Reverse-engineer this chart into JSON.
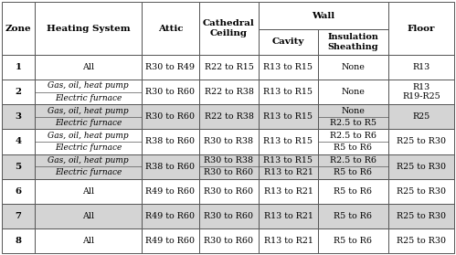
{
  "rows": [
    {
      "zone": "1",
      "heating": [
        "All"
      ],
      "attic": [
        "R30 to R49"
      ],
      "cathedral": [
        "R22 to R15"
      ],
      "cavity": [
        "R13 to R15"
      ],
      "sheathing": [
        "None"
      ],
      "floor": [
        "R13"
      ],
      "shaded": false,
      "sub": false
    },
    {
      "zone": "2",
      "heating": [
        "Gas, oil, heat pump",
        "Electric furnace"
      ],
      "attic": [
        "R30 to R60"
      ],
      "cathedral": [
        "R22 to R38"
      ],
      "cavity": [
        "R13 to R15"
      ],
      "sheathing": [
        "None"
      ],
      "floor": [
        "R13",
        "R19-R25"
      ],
      "shaded": false,
      "sub": true
    },
    {
      "zone": "3",
      "heating": [
        "Gas, oil, heat pump",
        "Electric furnace"
      ],
      "attic": [
        "R30 to R60"
      ],
      "cathedral": [
        "R22 to R38"
      ],
      "cavity": [
        "R13 to R15"
      ],
      "sheathing": [
        "None",
        "R2.5 to R5"
      ],
      "floor": [
        "R25"
      ],
      "shaded": true,
      "sub": true
    },
    {
      "zone": "4",
      "heating": [
        "Gas, oil, heat pump",
        "Electric furnace"
      ],
      "attic": [
        "R38 to R60"
      ],
      "cathedral": [
        "R30 to R38"
      ],
      "cavity": [
        "R13 to R15"
      ],
      "sheathing": [
        "R2.5 to R6",
        "R5 to R6"
      ],
      "floor": [
        "R25 to R30"
      ],
      "shaded": false,
      "sub": true
    },
    {
      "zone": "5",
      "heating": [
        "Gas, oil, heat pump",
        "Electric furnace"
      ],
      "attic": [
        "R38 to R60"
      ],
      "cathedral": [
        "R30 to R38",
        "R30 to R60"
      ],
      "cavity": [
        "R13 to R15",
        "R13 to R21"
      ],
      "sheathing": [
        "R2.5 to R6",
        "R5 to R6"
      ],
      "floor": [
        "R25 to R30"
      ],
      "shaded": true,
      "sub": true
    },
    {
      "zone": "6",
      "heating": [
        "All"
      ],
      "attic": [
        "R49 to R60"
      ],
      "cathedral": [
        "R30 to R60"
      ],
      "cavity": [
        "R13 to R21"
      ],
      "sheathing": [
        "R5 to R6"
      ],
      "floor": [
        "R25 to R30"
      ],
      "shaded": false,
      "sub": false
    },
    {
      "zone": "7",
      "heating": [
        "All"
      ],
      "attic": [
        "R49 to R60"
      ],
      "cathedral": [
        "R30 to R60"
      ],
      "cavity": [
        "R13 to R21"
      ],
      "sheathing": [
        "R5 to R6"
      ],
      "floor": [
        "R25 to R30"
      ],
      "shaded": true,
      "sub": false
    },
    {
      "zone": "8",
      "heating": [
        "All"
      ],
      "attic": [
        "R49 to R60"
      ],
      "cathedral": [
        "R30 to R60"
      ],
      "cavity": [
        "R13 to R21"
      ],
      "sheathing": [
        "R5 to R6"
      ],
      "floor": [
        "R25 to R30"
      ],
      "shaded": false,
      "sub": false
    }
  ],
  "bg_color": "#ffffff",
  "shaded_color": "#d4d4d4",
  "border_color": "#555555",
  "font_size": 6.8,
  "header_font_size": 7.5
}
